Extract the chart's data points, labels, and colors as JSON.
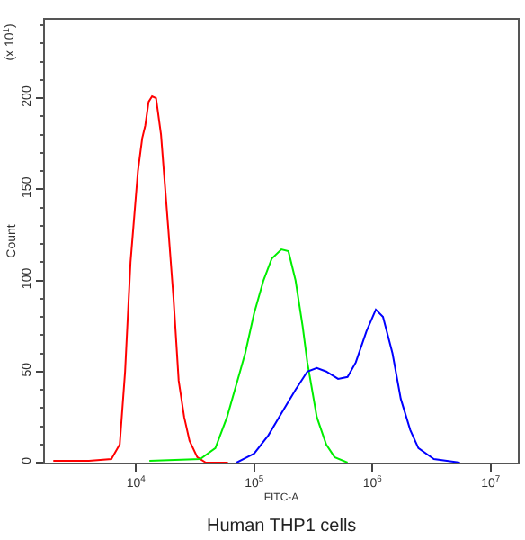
{
  "chart_data": {
    "type": "line",
    "xlabel": "FITC-A",
    "ylabel": "Count",
    "annotations": [
      "(x 10$^{1}$)",
      "Human THP1 cells"
    ],
    "log": "x",
    "grid": false,
    "marker": "none",
    "line_style": "solid",
    "xlim": [
      1700,
      17000000
    ],
    "xticks": [
      {
        "value": 10000,
        "label": "10$^{4}$"
      },
      {
        "value": 100000,
        "label": "10$^{5}$"
      },
      {
        "value": 1000000,
        "label": "10$^{6}$"
      },
      {
        "value": 10000000,
        "label": "10$^{7}$"
      }
    ],
    "ylim": [
      0,
      243
    ],
    "yticks": [
      0,
      50,
      100,
      150,
      200
    ],
    "series": [
      {
        "color": "#ff0000",
        "x": [
          2000,
          4000,
          6200,
          7300,
          8100,
          9000,
          10400,
          11300,
          12000,
          12800,
          13700,
          14800,
          16300,
          18700,
          20800,
          23000,
          25600,
          28400,
          33000,
          39000,
          60000
        ],
        "values": [
          1,
          1,
          2,
          10,
          50,
          110,
          160,
          178,
          185,
          198,
          201,
          200,
          180,
          130,
          90,
          45,
          25,
          12,
          3,
          0,
          0
        ]
      },
      {
        "color": "#00ee00",
        "x": [
          13000,
          35000,
          47000,
          59000,
          76000,
          84000,
          100000,
          120000,
          141000,
          170000,
          195000,
          224000,
          257000,
          282000,
          339000,
          407000,
          479000,
          617000
        ],
        "values": [
          1,
          2,
          8,
          25,
          50,
          60,
          82,
          100,
          112,
          117,
          116,
          100,
          75,
          55,
          25,
          10,
          3,
          0
        ]
      },
      {
        "color": "#0000ff",
        "x": [
          71000,
          100000,
          132000,
          170000,
          224000,
          282000,
          339000,
          407000,
          513000,
          617000,
          724000,
          891000,
          1070000,
          1230000,
          1480000,
          1740000,
          2090000,
          2450000,
          3310000,
          5500000
        ],
        "values": [
          0,
          5,
          15,
          27,
          40,
          50,
          52,
          50,
          46,
          47,
          55,
          72,
          84,
          80,
          60,
          35,
          18,
          8,
          2,
          0
        ]
      }
    ]
  }
}
